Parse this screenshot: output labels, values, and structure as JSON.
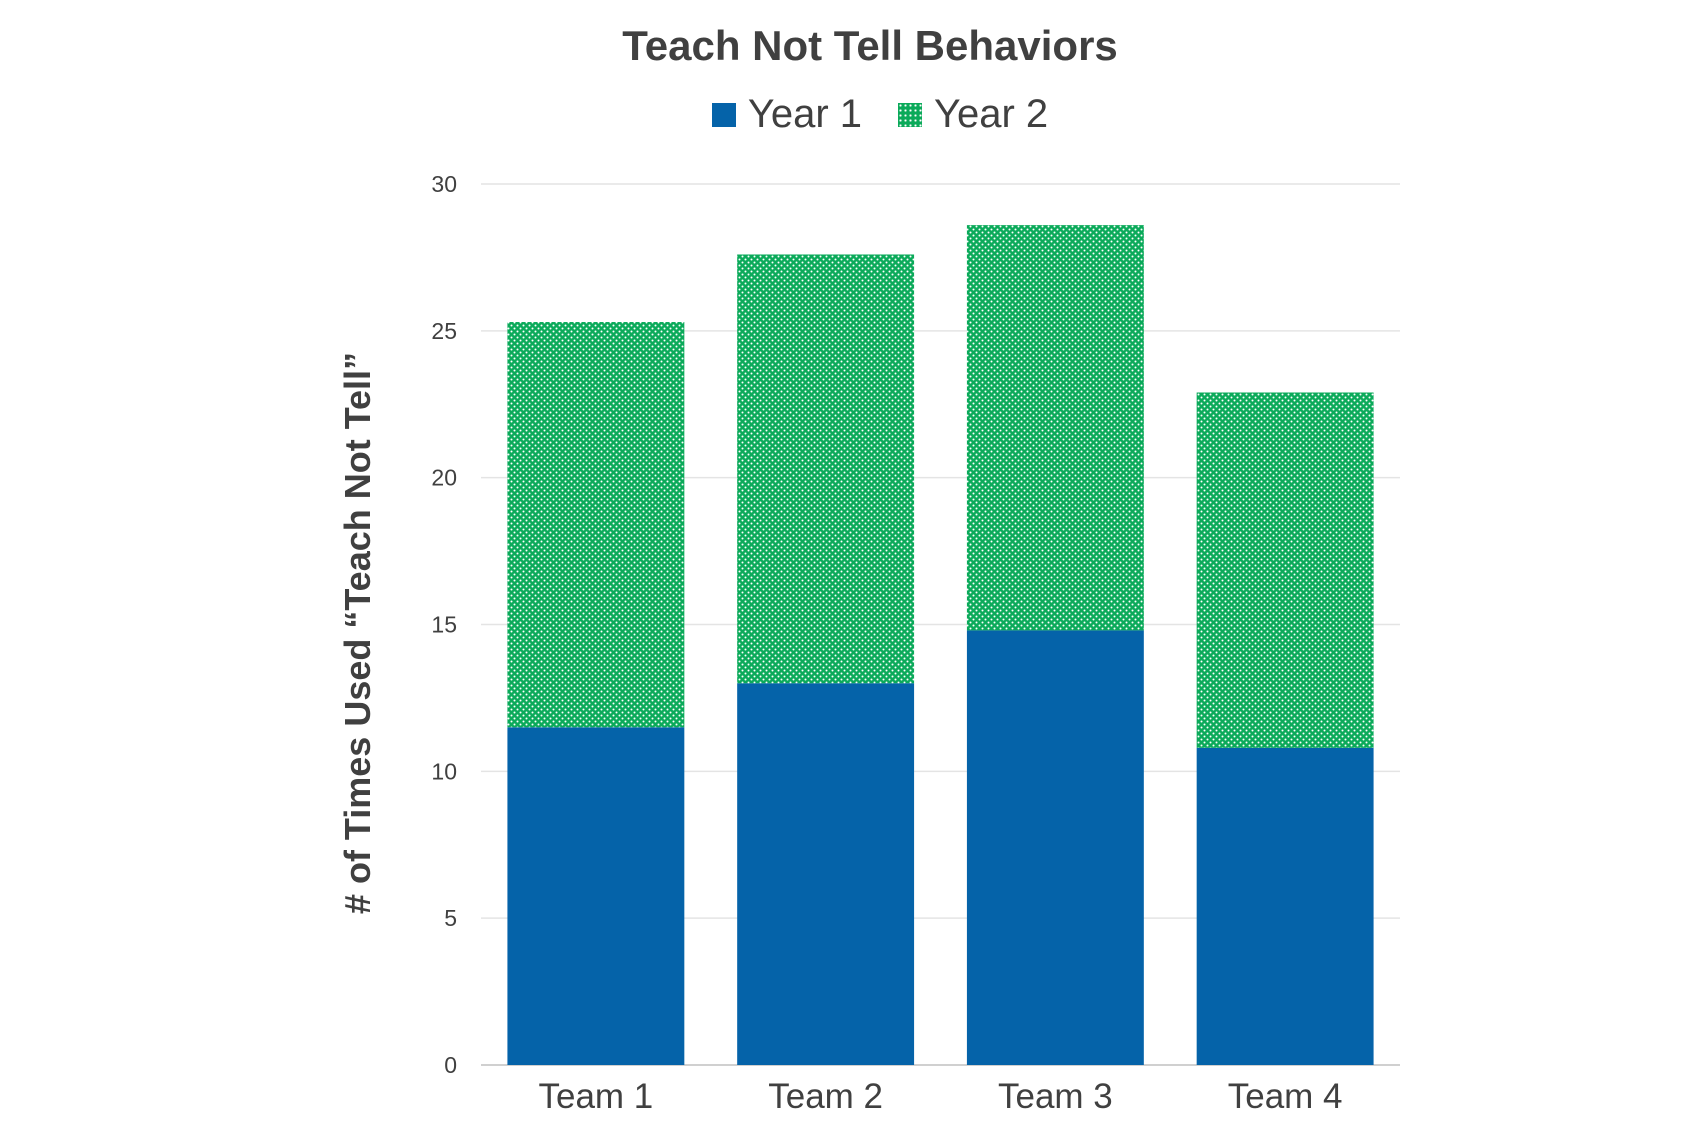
{
  "chart_data": {
    "type": "bar",
    "stacked": true,
    "title": "Teach Not Tell Behaviors",
    "xlabel": "",
    "ylabel": "# of Times Used “Teach Not Tell”",
    "categories": [
      "Team 1",
      "Team 2",
      "Team 3",
      "Team 4"
    ],
    "series": [
      {
        "name": "Year 1",
        "values": [
          11.5,
          13.0,
          14.8,
          10.8
        ],
        "color": "#0563A9",
        "pattern": "solid"
      },
      {
        "name": "Year 2",
        "values": [
          13.8,
          14.6,
          13.8,
          12.1
        ],
        "color": "#0BAA5A",
        "pattern": "dotted"
      }
    ],
    "ylim": [
      0,
      30
    ],
    "yticks": [
      "0",
      "5",
      "10",
      "15",
      "20",
      "25",
      "30"
    ],
    "grid": true,
    "legend": "top-center"
  }
}
